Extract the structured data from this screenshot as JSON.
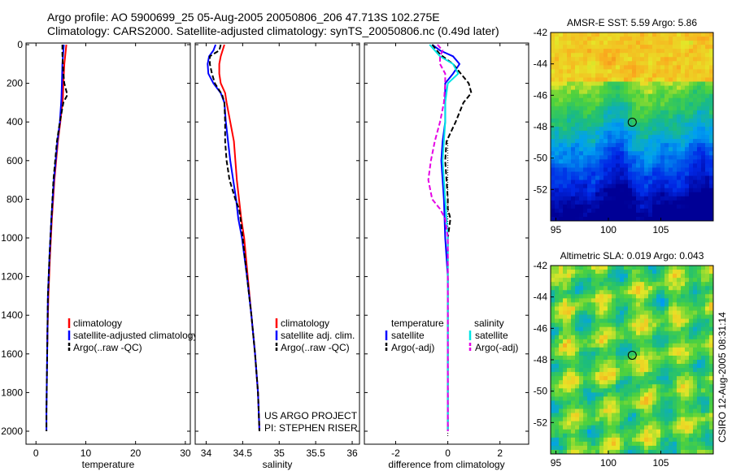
{
  "header": {
    "line1": "Argo profile: AO 5900699_25 05-Aug-2005 20050806_206 47.713S 102.275E",
    "line2": "Climatology: CARS2000. Satellite-adjusted climatology: synTS_20050806.nc (0.49d later)"
  },
  "side_stamp": "CSIRO 12-Aug-2005 08:31:14",
  "colors": {
    "red": "#ff0000",
    "blue": "#0000ff",
    "black": "#000000",
    "cyan": "#00e5e5",
    "magenta": "#e500e5"
  },
  "chart_data": [
    {
      "id": "temperature",
      "type": "line",
      "xlabel": "temperature",
      "xlim": [
        -2,
        31
      ],
      "ylim": [
        2050,
        0
      ],
      "xticks": [
        0,
        10,
        20,
        30
      ],
      "yticks": [
        0,
        200,
        400,
        600,
        800,
        1000,
        1200,
        1400,
        1600,
        1800,
        2000
      ],
      "legend": {
        "placement": "bottom-right",
        "entries": [
          "climatology",
          "satellite-adjusted climatology",
          "Argo(..raw -QC)"
        ]
      },
      "series": [
        {
          "name": "climatology",
          "color": "red",
          "dash": "solid",
          "depth": [
            0,
            100,
            200,
            280,
            400,
            500,
            700,
            900,
            1100,
            1300,
            1500,
            1550
          ],
          "values": [
            6.1,
            5.7,
            5.5,
            5.4,
            4.9,
            4.4,
            3.7,
            3.2,
            2.8,
            2.5,
            2.3,
            2.3
          ]
        },
        {
          "name": "satellite-adjusted climatology",
          "color": "blue",
          "dash": "solid",
          "depth": [
            0,
            100,
            200,
            280,
            400,
            500,
            700,
            900,
            1100,
            1300,
            1500,
            1700,
            1900,
            2000
          ],
          "values": [
            5.6,
            5.3,
            5.2,
            5.1,
            4.8,
            4.3,
            3.6,
            3.1,
            2.7,
            2.4,
            2.3,
            2.2,
            2.1,
            2.1
          ]
        },
        {
          "name": "Argo(..raw -QC)",
          "color": "black",
          "dash": "dashed",
          "depth": [
            0,
            50,
            100,
            150,
            200,
            260,
            300,
            400,
            500,
            700,
            900,
            1100,
            1300,
            1500,
            1700,
            1900,
            2000
          ],
          "values": [
            5.3,
            5.3,
            5.4,
            5.5,
            5.7,
            6.3,
            5.5,
            4.8,
            4.2,
            3.5,
            3.1,
            2.7,
            2.4,
            2.3,
            2.2,
            2.1,
            2.1
          ]
        }
      ]
    },
    {
      "id": "salinity",
      "type": "line",
      "xlabel": "salinity",
      "xlim": [
        33.85,
        36.1
      ],
      "ylim": [
        2050,
        0
      ],
      "xticks": [
        34,
        34.5,
        35,
        35.5,
        36
      ],
      "ytick_labels": false,
      "legend": {
        "placement": "bottom-right",
        "entries": [
          "climatology",
          "satellite adj. clim.",
          "Argo(..raw -QC)"
        ]
      },
      "annotations": [
        "US ARGO PROJECT",
        "PI: STEPHEN RISER"
      ],
      "series": [
        {
          "name": "climatology",
          "color": "red",
          "dash": "solid",
          "depth": [
            0,
            60,
            100,
            150,
            200,
            250,
            300,
            400,
            500,
            600,
            700,
            800,
            900,
            1000,
            1200,
            1400,
            1600,
            1800,
            2000
          ],
          "values": [
            34.25,
            34.2,
            34.18,
            34.18,
            34.2,
            34.26,
            34.28,
            34.33,
            34.38,
            34.4,
            34.42,
            34.45,
            34.48,
            34.52,
            34.57,
            34.62,
            34.67,
            34.71,
            34.73
          ]
        },
        {
          "name": "satellite adj. clim.",
          "color": "blue",
          "dash": "solid",
          "depth": [
            0,
            30,
            60,
            100,
            150,
            200,
            250,
            300,
            400,
            500,
            600,
            700,
            800,
            900,
            1000,
            1200,
            1400,
            1600,
            1800,
            2000
          ],
          "values": [
            34.13,
            34.1,
            34.04,
            34.02,
            34.03,
            34.1,
            34.2,
            34.25,
            34.27,
            34.3,
            34.33,
            34.37,
            34.41,
            34.44,
            34.49,
            34.56,
            34.62,
            34.67,
            34.71,
            34.73
          ]
        },
        {
          "name": "Argo(..raw -QC)",
          "color": "black",
          "dash": "dashed",
          "depth": [
            0,
            30,
            60,
            100,
            150,
            200,
            260,
            300,
            400,
            500,
            600,
            700,
            800,
            850,
            900,
            1000,
            1200,
            1400,
            1600,
            1800,
            2000
          ],
          "values": [
            34.2,
            34.18,
            34.05,
            34.05,
            34.08,
            34.12,
            34.22,
            34.25,
            34.26,
            34.26,
            34.28,
            34.32,
            34.4,
            34.45,
            34.47,
            34.5,
            34.56,
            34.62,
            34.67,
            34.71,
            34.73
          ]
        }
      ]
    },
    {
      "id": "difference",
      "type": "line",
      "xlabel": "difference from climatology",
      "xlim": [
        -3.2,
        3.1
      ],
      "ylim": [
        2050,
        0
      ],
      "xticks": [
        -2,
        0,
        2
      ],
      "ytick_labels": false,
      "legend": {
        "placement": "bottom",
        "headers": [
          "temperature",
          "salinity"
        ],
        "entries": [
          "satellite",
          "Argo(-adj)",
          "satellite",
          "Argo(-adj)"
        ]
      },
      "series": [
        {
          "name": "satellite",
          "group": "temperature",
          "color": "blue",
          "dash": "solid",
          "depth": [
            0,
            30,
            60,
            100,
            150,
            200,
            300,
            400,
            500,
            600,
            700,
            800,
            1000,
            1200,
            1500,
            2000
          ],
          "values": [
            -0.6,
            -0.3,
            0.2,
            0.45,
            0.2,
            -0.1,
            -0.1,
            -0.1,
            -0.2,
            -0.25,
            -0.2,
            -0.15,
            -0.1,
            0.0,
            0.0,
            0.0
          ]
        },
        {
          "name": "Argo(-adj)",
          "group": "temperature",
          "color": "black",
          "dash": "dashed",
          "depth": [
            0,
            50,
            100,
            150,
            200,
            250,
            300,
            400,
            500,
            600,
            700,
            800,
            850,
            900,
            1000,
            1200,
            1500,
            2000
          ],
          "values": [
            -0.6,
            -0.3,
            0.2,
            0.5,
            0.8,
            0.9,
            0.6,
            0.3,
            -0.05,
            -0.1,
            -0.05,
            0.0,
            0.0,
            0.1,
            0.0,
            0.0,
            0.0,
            0.0
          ]
        },
        {
          "name": "satellite",
          "group": "salinity",
          "color": "cyan",
          "dash": "solid",
          "depth": [
            0,
            30,
            60,
            100,
            150,
            200,
            300,
            400,
            500,
            600,
            700,
            800,
            1000,
            1200,
            1500,
            2000
          ],
          "values": [
            -0.7,
            -0.5,
            -0.3,
            0.2,
            0.4,
            0.0,
            -0.1,
            -0.1,
            -0.15,
            -0.2,
            -0.15,
            -0.1,
            0.0,
            0.0,
            0.0,
            0.0
          ]
        },
        {
          "name": "Argo(-adj)",
          "group": "salinity",
          "color": "magenta",
          "dash": "dashed",
          "depth": [
            0,
            30,
            60,
            100,
            150,
            200,
            300,
            400,
            500,
            600,
            700,
            800,
            850,
            900,
            1000,
            1200,
            1500,
            2000
          ],
          "values": [
            -0.4,
            -0.2,
            -0.3,
            -0.3,
            -0.1,
            -0.1,
            -0.15,
            -0.3,
            -0.5,
            -0.65,
            -0.75,
            -0.6,
            -0.3,
            -0.1,
            0.0,
            0.0,
            0.0,
            0.0
          ]
        }
      ]
    },
    {
      "id": "sst_map",
      "type": "heatmap",
      "title": "AMSR-E SST: 5.59 Argo: 5.86",
      "xlim": [
        94.5,
        110
      ],
      "ylim": [
        -54,
        -42
      ],
      "xticks": [
        95,
        100,
        105
      ],
      "yticks": [
        -42,
        -44,
        -46,
        -48,
        -50,
        -52
      ],
      "marker": {
        "lon": 102.275,
        "lat": -47.713
      }
    },
    {
      "id": "sla_map",
      "type": "heatmap",
      "title": "Altimetric SLA: 0.019 Argo: 0.043",
      "xlim": [
        94.5,
        110
      ],
      "ylim": [
        -54,
        -42
      ],
      "xticks": [
        95,
        100,
        105
      ],
      "yticks": [
        -42,
        -44,
        -46,
        -48,
        -50,
        -52
      ],
      "marker": {
        "lon": 102.275,
        "lat": -47.713
      }
    }
  ]
}
